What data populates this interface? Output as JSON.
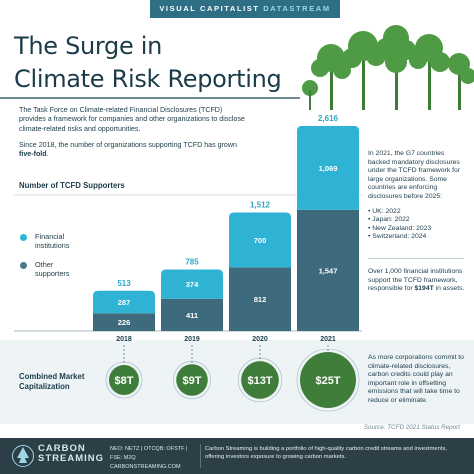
{
  "banner": {
    "part1": "VISUAL CAPITALIST",
    "part2": "DATASTREAM"
  },
  "title": {
    "line1": "The Surge in",
    "line2": "Climate Risk Reporting"
  },
  "intro": {
    "p1": "The Task Force on Climate-related Financial Disclosures (TCFD) provides a framework for companies and other organizations to disclose climate-related risks and opportunities.",
    "p2_prefix": "Since 2018, the number of organizations supporting TCFD has grown ",
    "p2_bold": "five-fold",
    "p2_suffix": "."
  },
  "supporters_title": "Number of TCFD Supporters",
  "market_title_line1": "Combined Market",
  "market_title_line2": "Capitalization",
  "legend": [
    {
      "label_line1": "Financial",
      "label_line2": "institutions",
      "color": "#29b6d6"
    },
    {
      "label_line1": "Other",
      "label_line2": "supporters",
      "color": "#4a7a8c"
    }
  ],
  "chart_data": {
    "type": "bar",
    "stacked": true,
    "categories": [
      "2018",
      "2019",
      "2020",
      "2021"
    ],
    "series": [
      {
        "name": "Other supporters",
        "values": [
          226,
          411,
          812,
          1547
        ],
        "color": "#3d6b7d"
      },
      {
        "name": "Financial institutions",
        "values": [
          287,
          374,
          700,
          1069
        ],
        "color": "#2fb3d4"
      }
    ],
    "totals": [
      513,
      785,
      1512,
      2616
    ],
    "title": "Number of TCFD Supporters",
    "ylim": [
      0,
      2700
    ],
    "market_cap": [
      "$8T",
      "$9T",
      "$13T",
      "$25T"
    ]
  },
  "notes": {
    "g7": "In 2021, the G7 countries backed mandatory disclosures under the TCFD framework for large organizations. Some countries are enforcing disclosures before 2025:",
    "countries": [
      "• UK: 2022",
      "• Japan: 2022",
      "• New Zealand: 2023",
      "• Switzerland: 2024"
    ],
    "fin_prefix": "Over 1,000 financial institutions support the TCFD framework, responsible for ",
    "fin_bold": "$194T",
    "fin_suffix": " in assets.",
    "carbon": "As more corporations commit to climate-related disclosures, carbon credits could play an important role in offsetting emissions that will take time to reduce or eliminate."
  },
  "source": "Source: TCFD 2021 Status Report",
  "footer": {
    "logo_line1": "CARBON",
    "logo_line2": "STREAMING",
    "tickers": "NEO: NETZ | OTCQB: OFSTF | FSE: M2Q",
    "website": "CARBONSTREAMING.COM",
    "description": "Carbon Streaming is building a portfolio of high-quality carbon credit streams and investments, offering investors exposure to growing carbon markets."
  },
  "colors": {
    "financial": "#2fb3d4",
    "other": "#3d6b7d",
    "market_circle": "#3f7d3a",
    "tree": "#4f9a45"
  }
}
